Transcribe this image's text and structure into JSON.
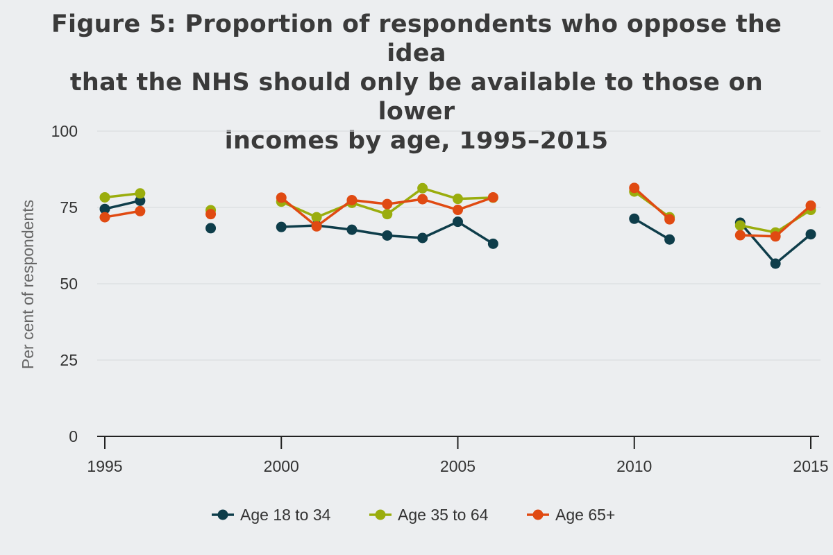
{
  "chart_data": {
    "type": "line",
    "title_lines": [
      "Figure 5: Proportion of respondents who oppose the idea",
      "that the NHS should only be available to those on lower",
      "incomes by age, 1995–2015"
    ],
    "xlabel": "",
    "ylabel": "Per cent of respondents",
    "xlim": [
      1995,
      2015
    ],
    "ylim": [
      0,
      100
    ],
    "xticks": [
      1995,
      2000,
      2005,
      2010,
      2015
    ],
    "yticks": [
      0,
      25,
      50,
      75,
      100
    ],
    "grid": true,
    "legend_position": "bottom",
    "series": [
      {
        "name": "Age 18 to 34",
        "color": "#0e3d4a",
        "points": [
          [
            1995,
            74.5
          ],
          [
            1996,
            77.2
          ],
          [
            1998,
            68.2
          ],
          [
            2000,
            68.6
          ],
          [
            2001,
            69.1
          ],
          [
            2002,
            67.7
          ],
          [
            2003,
            65.8
          ],
          [
            2004,
            65.0
          ],
          [
            2005,
            70.3
          ],
          [
            2006,
            63.1
          ],
          [
            2010,
            71.3
          ],
          [
            2011,
            64.5
          ],
          [
            2013,
            70.0
          ],
          [
            2014,
            56.6
          ],
          [
            2015,
            66.2
          ]
        ]
      },
      {
        "name": "Age 35 to 64",
        "color": "#9aad0d",
        "points": [
          [
            1995,
            78.3
          ],
          [
            1996,
            79.6
          ],
          [
            1998,
            74.1
          ],
          [
            2000,
            76.9
          ],
          [
            2001,
            71.8
          ],
          [
            2002,
            76.5
          ],
          [
            2003,
            72.8
          ],
          [
            2004,
            81.3
          ],
          [
            2005,
            77.8
          ],
          [
            2006,
            78.2
          ],
          [
            2010,
            80.2
          ],
          [
            2011,
            71.8
          ],
          [
            2013,
            69.1
          ],
          [
            2014,
            66.8
          ],
          [
            2015,
            74.2
          ]
        ]
      },
      {
        "name": "Age 65+",
        "color": "#e04a12",
        "points": [
          [
            1995,
            71.8
          ],
          [
            1996,
            73.8
          ],
          [
            1998,
            72.8
          ],
          [
            2000,
            78.2
          ],
          [
            2001,
            68.8
          ],
          [
            2002,
            77.4
          ],
          [
            2003,
            76.1
          ],
          [
            2004,
            77.7
          ],
          [
            2005,
            74.2
          ],
          [
            2006,
            78.3
          ],
          [
            2010,
            81.4
          ],
          [
            2011,
            71.1
          ],
          [
            2013,
            65.9
          ],
          [
            2014,
            65.5
          ],
          [
            2015,
            75.6
          ]
        ]
      }
    ]
  }
}
